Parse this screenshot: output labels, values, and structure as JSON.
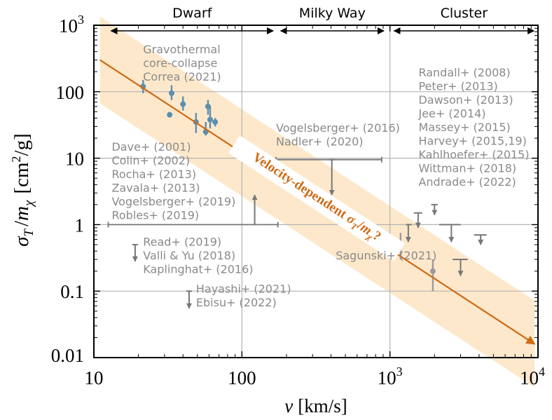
{
  "chart_data": {
    "type": "scatter",
    "x_scale": "log",
    "y_scale": "log",
    "xlim": [
      10,
      10000
    ],
    "ylim": [
      0.01,
      1000
    ],
    "grid": true,
    "xlabel": {
      "main": "v",
      "unit": "[km/s]"
    },
    "ylabel": {
      "sym_sigma": "σ",
      "sub_T": "T",
      "slash": "/",
      "sym_m": "m",
      "sub_chi": "χ",
      "unit_open": "[cm",
      "unit_sup": "2",
      "unit_close": "/g]"
    },
    "x_ticks": [
      {
        "value": 10,
        "base": "10",
        "sup": ""
      },
      {
        "value": 100,
        "base": "100",
        "sup": ""
      },
      {
        "value": 1000,
        "base": "10",
        "sup": "3"
      },
      {
        "value": 10000,
        "base": "10",
        "sup": "4"
      }
    ],
    "y_ticks": [
      {
        "value": 0.01,
        "base": "0.01",
        "sup": ""
      },
      {
        "value": 0.1,
        "base": "0.1",
        "sup": ""
      },
      {
        "value": 1,
        "base": "1",
        "sup": ""
      },
      {
        "value": 10,
        "base": "10",
        "sup": ""
      },
      {
        "value": 100,
        "base": "100",
        "sup": ""
      },
      {
        "value": 1000,
        "base": "10",
        "sup": "3"
      }
    ],
    "regimes": [
      {
        "label": "Dwarf",
        "from": 12.5,
        "to": 170
      },
      {
        "label": "Milky Way",
        "from": 175,
        "to": 950
      },
      {
        "label": "Cluster",
        "from": 1020,
        "to": 9800
      }
    ],
    "trend": {
      "label": "Velocity-dependent σT/mχ?",
      "label_text": "Velocity-dependent ",
      "label_sigma": "σ",
      "label_sigma_sub": "T",
      "label_slash": "/",
      "label_m": "m",
      "label_m_sub": "χ",
      "label_q": "?",
      "x": [
        11,
        9500
      ],
      "y": [
        300,
        0.016
      ],
      "band_factor": 4.5,
      "color": "#cf6a15",
      "band_color": "#fde4c2"
    },
    "colors": {
      "points": "#5b8fae",
      "limits": "#777777",
      "text": "#8a8a8a"
    },
    "points": [
      {
        "x": 21.5,
        "y": 120,
        "ylo": 95,
        "yhi": 150
      },
      {
        "x": 32.5,
        "y": 45
      },
      {
        "x": 33.5,
        "y": 95,
        "ylo": 75,
        "yhi": 125
      },
      {
        "x": 40,
        "y": 65,
        "ylo": 52,
        "yhi": 85
      },
      {
        "x": 49,
        "y": 35,
        "ylo": 24,
        "yhi": 48
      },
      {
        "x": 57,
        "y": 25,
        "ylo": 22,
        "yhi": 35
      },
      {
        "x": 59,
        "y": 60,
        "ylo": 45,
        "yhi": 75
      },
      {
        "x": 61,
        "y": 38,
        "ylo": 28,
        "yhi": 60
      },
      {
        "x": 66,
        "y": 35,
        "ylo": 30,
        "yhi": 40
      },
      {
        "x": 1180,
        "y": 0.5,
        "ylo": 0.3,
        "yhi": 0.75
      },
      {
        "x": 1950,
        "y": 0.2,
        "ylo": 0.1,
        "yhi": 0.3
      }
    ],
    "upper_limits": [
      {
        "x": 19,
        "y": 0.5,
        "arrow_to": 0.28
      },
      {
        "x": 44,
        "y": 0.1,
        "arrow_to": 0.055
      },
      {
        "x": 405,
        "y": 9.5,
        "arrow_to": 2.8
      },
      {
        "x": 1330,
        "y": 1.0,
        "arrow_to": 0.55,
        "xlo": 1280,
        "xhi": 1400
      },
      {
        "x": 1550,
        "y": 1.5,
        "arrow_to": 0.9,
        "xlo": 1450,
        "xhi": 1650
      },
      {
        "x": 2000,
        "y": 2.0,
        "arrow_to": 1.4,
        "xlo": 1900,
        "xhi": 2100
      },
      {
        "x": 2600,
        "y": 1.0,
        "arrow_to": 0.55,
        "xlo": 2150,
        "xhi": 3000
      },
      {
        "x": 3000,
        "y": 0.3,
        "arrow_to": 0.17,
        "xlo": 2650,
        "xhi": 3350
      },
      {
        "x": 4100,
        "y": 0.7,
        "arrow_to": 0.5,
        "xlo": 3700,
        "xhi": 4500
      }
    ],
    "lower_limits": [
      {
        "x": 122,
        "y": 1.0,
        "arrow_to": 2.8,
        "xlo": 12.5,
        "xhi": 175
      }
    ],
    "ranges": [
      {
        "y": 9.5,
        "xlo": 170,
        "xhi": 880
      }
    ],
    "annotations": [
      {
        "lines": [
          "Gravothermal",
          "core-collapse",
          "Correa (2021)"
        ],
        "x": 21.5,
        "y": 380,
        "size": 16
      },
      {
        "lines": [
          "Dave+ (2001)",
          "Colin+ (2002)",
          "Rocha+ (2013)",
          "Zavala+ (2013)",
          "Vogelsberger+ (2019)",
          "Robles+ (2019)"
        ],
        "x": 13.2,
        "y": 13,
        "size": 16
      },
      {
        "lines": [
          "Vogelsberger+ (2016)",
          "Nadler+ (2020)"
        ],
        "x": 170,
        "y": 25,
        "size": 16
      },
      {
        "lines": [
          "Read+ (2019)",
          "Valli & Yu (2018)",
          "Kaplinghat+ (2016)"
        ],
        "x": 21.5,
        "y": 0.48,
        "size": 16
      },
      {
        "lines": [
          "Hayashi+ (2021)",
          "Ebisu+ (2022)"
        ],
        "x": 49,
        "y": 0.094,
        "size": 16
      },
      {
        "lines": [
          "Sagunski+ (2021)"
        ],
        "x": 430,
        "y": 0.3,
        "size": 16
      },
      {
        "lines": [
          "Randall+ (2008)",
          "Peter+ (2013)",
          "Dawson+ (2013)",
          "Jee+ (2014)",
          "Massey+ (2015)",
          "Harvey+ (2015,19)",
          "Kahlhoefer+ (2015)",
          "Wittman+ (2018)",
          "Andrade+ (2022)"
        ],
        "x": 1560,
        "y": 170,
        "size": 16
      }
    ]
  }
}
